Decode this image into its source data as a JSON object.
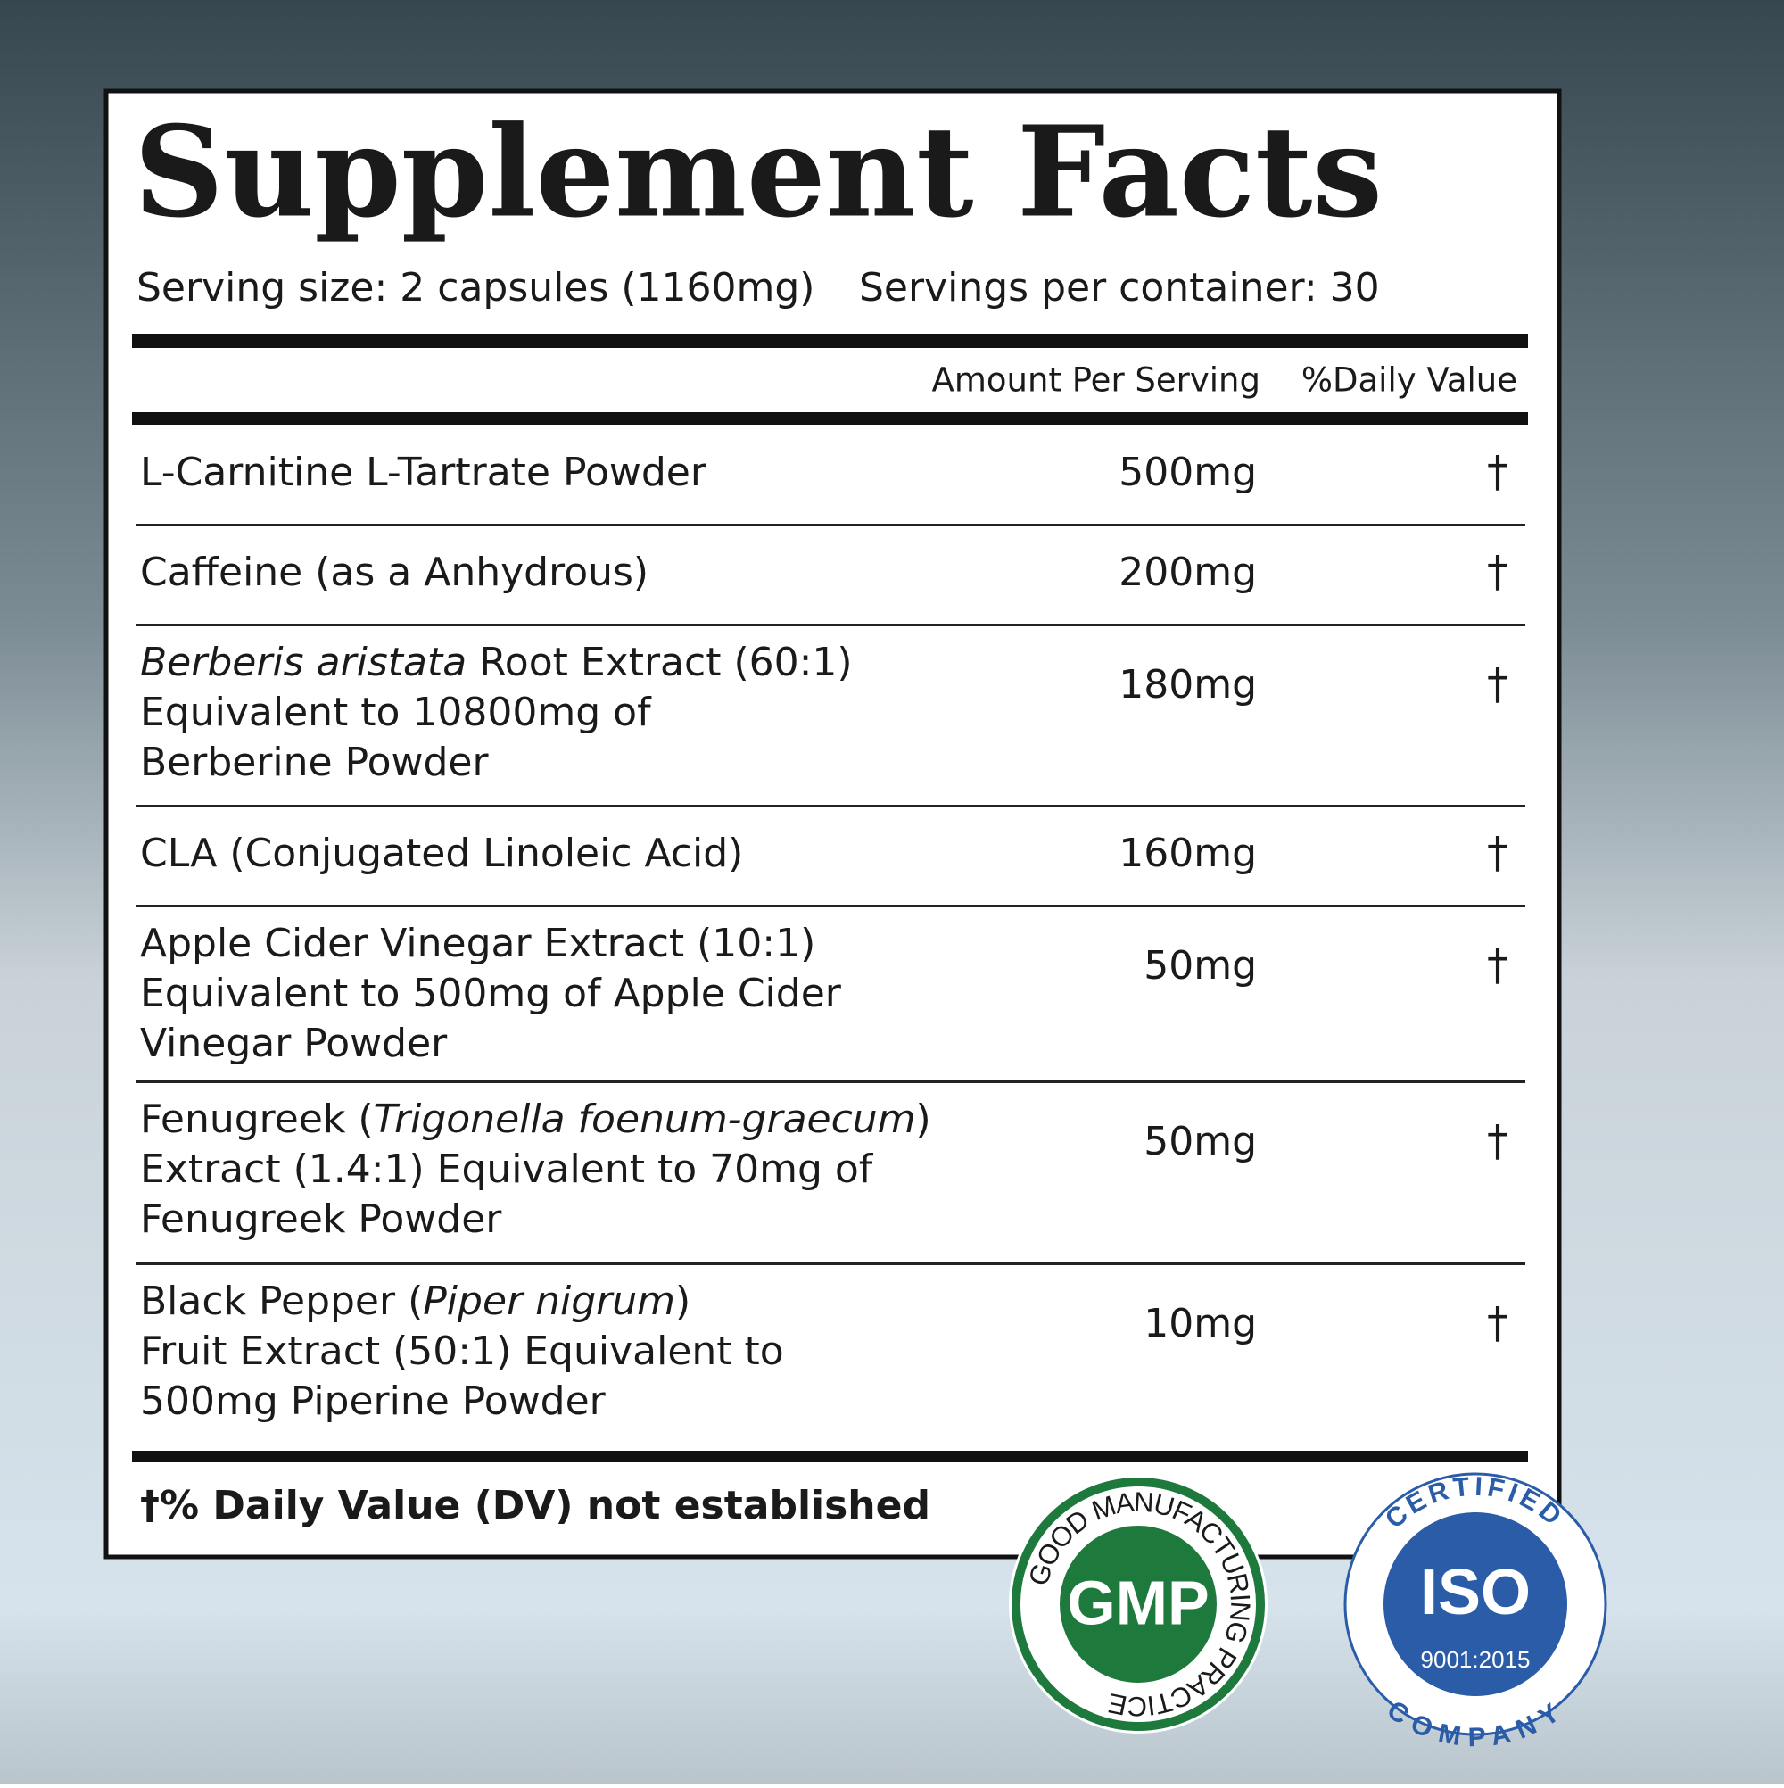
{
  "title": "Supplement Facts",
  "serving_size": "Serving size: 2 capsules (1160mg)",
  "servings_per_container": "Servings per container: 30",
  "columns": [
    "Amount Per Serving",
    "%Daily Value"
  ],
  "rows": [
    {
      "lines": [
        [
          {
            "text": "L-Carnitine L-Tartrate Powder"
          }
        ]
      ],
      "amount": "500mg",
      "dv": "†"
    },
    {
      "lines": [
        [
          {
            "text": "Caffeine (as a Anhydrous)"
          }
        ]
      ],
      "amount": "200mg",
      "dv": "†"
    },
    {
      "lines": [
        [
          {
            "text": "Berberis aristata",
            "italic": true
          },
          {
            "text": " Root Extract (60:1)"
          }
        ],
        [
          {
            "text": "Equivalent to 10800mg of"
          }
        ],
        [
          {
            "text": "Berberine Powder"
          }
        ]
      ],
      "amount": "180mg",
      "dv": "†"
    },
    {
      "lines": [
        [
          {
            "text": "CLA (Conjugated Linoleic Acid)"
          }
        ]
      ],
      "amount": "160mg",
      "dv": "†"
    },
    {
      "lines": [
        [
          {
            "text": "Apple Cider Vinegar Extract (10:1)"
          }
        ],
        [
          {
            "text": "Equivalent to 500mg of Apple Cider"
          }
        ],
        [
          {
            "text": "Vinegar Powder"
          }
        ]
      ],
      "amount": "50mg",
      "dv": "†"
    },
    {
      "lines": [
        [
          {
            "text": "Fenugreek ("
          },
          {
            "text": "Trigonella foenum-graecum",
            "italic": true
          },
          {
            "text": ")"
          }
        ],
        [
          {
            "text": "Extract (1.4:1) Equivalent to 70mg of"
          }
        ],
        [
          {
            "text": "Fenugreek Powder"
          }
        ]
      ],
      "amount": "50mg",
      "dv": "†"
    },
    {
      "lines": [
        [
          {
            "text": "Black Pepper ("
          },
          {
            "text": "Piper nigrum",
            "italic": true
          },
          {
            "text": ")"
          }
        ],
        [
          {
            "text": "Fruit Extract (50:1) Equivalent to"
          }
        ],
        [
          {
            "text": "500mg Piperine Powder"
          }
        ]
      ],
      "amount": "10mg",
      "dv": "†"
    }
  ],
  "footnote": "†% Daily Value (DV) not established",
  "badges": {
    "gmp": {
      "label": "GMP",
      "ring": "GOOD MANUFACTURING PRACTICE"
    },
    "iso": {
      "top": "CERTIFIED",
      "label": "ISO",
      "standard": "9001:2015",
      "bottom": "COMPANY"
    }
  }
}
